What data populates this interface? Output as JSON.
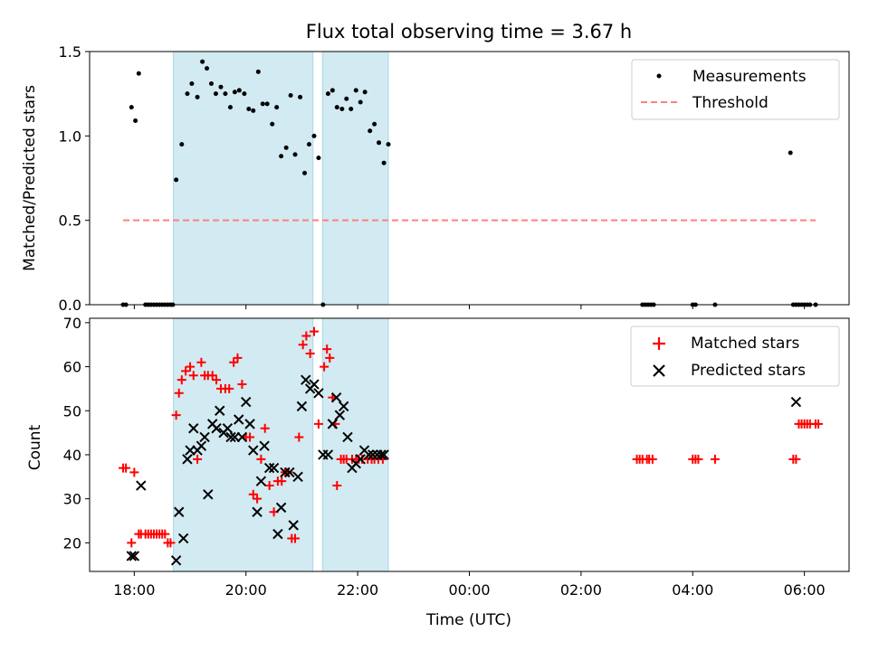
{
  "colors": {
    "measurement": "#000000",
    "threshold": "#ff7f7f",
    "matched": "#ff0000",
    "predicted": "#000000",
    "shade": "#add8e6"
  },
  "chart_data": [
    {
      "type": "scatter",
      "title": "Flux total observing time = 3.67 h",
      "xlabel": "",
      "ylabel": "Matched/Predicted stars",
      "xlim": [
        -0.8,
        12.8
      ],
      "ylim": [
        0,
        1.5
      ],
      "yticks": [
        0.0,
        0.5,
        1.0,
        1.5
      ],
      "ytick_labels": [
        "0.0",
        "0.5",
        "1.0",
        "1.5"
      ],
      "xticks": [
        0,
        2,
        4,
        6,
        8,
        10,
        12
      ],
      "shaded_spans": [
        [
          0.7,
          3.2
        ],
        [
          3.37,
          4.55
        ]
      ],
      "legend": [
        "Measurements",
        "Threshold"
      ],
      "legend_position": "top-right",
      "series": [
        {
          "name": "Measurements",
          "marker": "dot",
          "x": [
            -0.2,
            -0.15,
            -0.05,
            0.02,
            0.08,
            0.2,
            0.25,
            0.3,
            0.35,
            0.4,
            0.45,
            0.5,
            0.55,
            0.6,
            0.65,
            0.69,
            0.75,
            0.85,
            0.95,
            1.03,
            1.13,
            1.22,
            1.3,
            1.38,
            1.46,
            1.55,
            1.63,
            1.72,
            1.8,
            1.88,
            1.97,
            2.05,
            2.13,
            2.22,
            2.3,
            2.38,
            2.47,
            2.55,
            2.63,
            2.72,
            2.8,
            2.88,
            2.97,
            3.05,
            3.13,
            3.22,
            3.3,
            3.38,
            3.47,
            3.55,
            3.63,
            3.72,
            3.8,
            3.88,
            3.97,
            4.05,
            4.13,
            4.22,
            4.3,
            4.38,
            4.47,
            4.55,
            9.1,
            9.15,
            9.2,
            9.25,
            9.3,
            10.0,
            10.05,
            10.4,
            11.75,
            11.8,
            11.85,
            11.9,
            11.95,
            12.0,
            12.05,
            12.1,
            12.2
          ],
          "values": [
            0,
            0,
            1.17,
            1.09,
            1.37,
            0,
            0,
            0,
            0,
            0,
            0,
            0,
            0,
            0,
            0,
            0,
            0.74,
            0.95,
            1.25,
            1.31,
            1.23,
            1.44,
            1.4,
            1.31,
            1.25,
            1.29,
            1.25,
            1.17,
            1.26,
            1.27,
            1.25,
            1.16,
            1.15,
            1.38,
            1.19,
            1.19,
            1.07,
            1.17,
            0.88,
            0.93,
            1.24,
            0.89,
            1.23,
            0.78,
            0.95,
            1.0,
            0.87,
            0,
            1.25,
            1.27,
            1.17,
            1.16,
            1.22,
            1.16,
            1.27,
            1.2,
            1.26,
            1.03,
            1.07,
            0.96,
            0.84,
            0.95,
            0,
            0,
            0,
            0,
            0,
            0,
            0,
            0,
            0.9,
            0,
            0,
            0,
            0,
            0,
            0,
            0,
            0
          ]
        },
        {
          "name": "Threshold",
          "marker": "dashed-line",
          "x": [
            -0.2,
            12.2
          ],
          "values": [
            0.5,
            0.5
          ]
        }
      ]
    },
    {
      "type": "scatter",
      "title": "",
      "xlabel": "Time (UTC)",
      "ylabel": "Count",
      "xlim": [
        -0.8,
        12.8
      ],
      "ylim": [
        13.5,
        71
      ],
      "yticks": [
        20,
        30,
        40,
        50,
        60,
        70
      ],
      "ytick_labels": [
        "20",
        "30",
        "40",
        "50",
        "60",
        "70"
      ],
      "xticks": [
        0,
        2,
        4,
        6,
        8,
        10,
        12
      ],
      "xtick_labels": [
        "18:00",
        "20:00",
        "22:00",
        "00:00",
        "02:00",
        "04:00",
        "06:00"
      ],
      "shaded_spans": [
        [
          0.7,
          3.2
        ],
        [
          3.37,
          4.55
        ]
      ],
      "legend": [
        "Matched stars",
        "Predicted stars"
      ],
      "legend_position": "top-right",
      "series": [
        {
          "name": "Matched stars",
          "marker": "plus",
          "x": [
            -0.2,
            -0.15,
            -0.05,
            0.0,
            0.08,
            0.12,
            0.2,
            0.25,
            0.3,
            0.35,
            0.4,
            0.45,
            0.5,
            0.55,
            0.6,
            0.65,
            0.75,
            0.8,
            0.85,
            0.92,
            1.0,
            1.06,
            1.13,
            1.2,
            1.26,
            1.32,
            1.4,
            1.47,
            1.55,
            1.63,
            1.7,
            1.78,
            1.85,
            1.93,
            2.0,
            2.07,
            2.13,
            2.2,
            2.27,
            2.34,
            2.42,
            2.5,
            2.57,
            2.64,
            2.7,
            2.76,
            2.82,
            2.88,
            2.95,
            3.02,
            3.08,
            3.15,
            3.22,
            3.3,
            3.4,
            3.45,
            3.5,
            3.55,
            3.6,
            3.63,
            3.7,
            3.75,
            3.8,
            3.9,
            3.97,
            4.02,
            4.08,
            4.18,
            4.25,
            4.3,
            4.37,
            4.45,
            9.0,
            9.05,
            9.1,
            9.18,
            9.22,
            9.28,
            10.0,
            10.05,
            10.1,
            10.4,
            11.8,
            11.85,
            11.9,
            11.95,
            12.0,
            12.05,
            12.1,
            12.2,
            12.25
          ],
          "values": [
            37,
            37,
            20,
            36,
            22,
            22,
            22,
            22,
            22,
            22,
            22,
            22,
            22,
            22,
            20,
            20,
            49,
            54,
            57,
            59,
            60,
            58,
            39,
            61,
            58,
            58,
            58,
            57,
            55,
            55,
            55,
            61,
            62,
            56,
            44,
            44,
            31,
            30,
            39,
            46,
            33,
            27,
            34,
            34,
            36,
            36,
            21,
            21,
            44,
            65,
            67,
            63,
            68,
            47,
            60,
            64,
            62,
            53,
            47,
            33,
            39,
            39,
            39,
            39,
            39,
            39,
            39,
            39,
            39,
            39,
            39,
            39,
            39,
            39,
            39,
            39,
            39,
            39,
            39,
            39,
            39,
            39,
            39,
            39,
            47,
            47,
            47,
            47,
            47,
            47,
            47
          ]
        },
        {
          "name": "Predicted stars",
          "marker": "x",
          "x": [
            -0.05,
            0.0,
            0.12,
            0.75,
            0.8,
            0.88,
            0.95,
            1.0,
            1.06,
            1.13,
            1.2,
            1.26,
            1.32,
            1.4,
            1.47,
            1.53,
            1.6,
            1.67,
            1.73,
            1.8,
            1.87,
            1.93,
            2.0,
            2.07,
            2.13,
            2.2,
            2.27,
            2.33,
            2.42,
            2.5,
            2.57,
            2.63,
            2.7,
            2.78,
            2.85,
            2.93,
            3.0,
            3.07,
            3.15,
            3.22,
            3.3,
            3.38,
            3.47,
            3.55,
            3.62,
            3.68,
            3.75,
            3.82,
            3.9,
            3.97,
            4.05,
            4.12,
            4.2,
            4.27,
            4.35,
            4.42,
            4.47,
            11.85
          ],
          "values": [
            17,
            17,
            33,
            16,
            27,
            21,
            39,
            41,
            46,
            41,
            42,
            44,
            31,
            47,
            46,
            50,
            45,
            46,
            44,
            44,
            48,
            44,
            52,
            47,
            41,
            27,
            34,
            42,
            37,
            37,
            22,
            28,
            36,
            36,
            24,
            35,
            51,
            57,
            55,
            56,
            54,
            40,
            40,
            47,
            53,
            49,
            51,
            44,
            37,
            38,
            39,
            41,
            40,
            40,
            40,
            40,
            40,
            52
          ]
        }
      ]
    }
  ]
}
